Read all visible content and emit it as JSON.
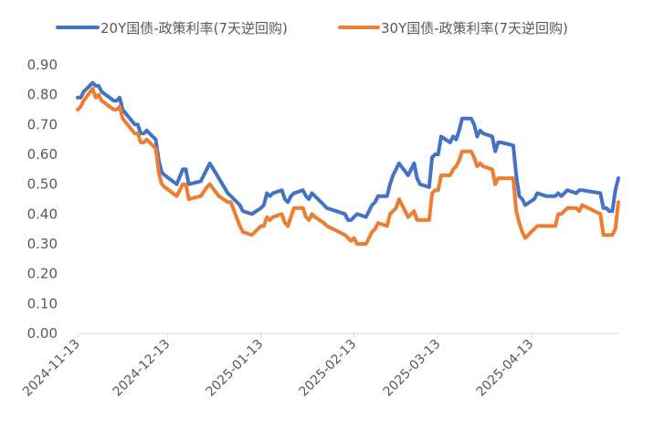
{
  "chart_data": {
    "type": "line",
    "title": "",
    "xlabel": "",
    "ylabel": "",
    "ylim": [
      0,
      0.9
    ],
    "yticks": [
      "0.00",
      "0.10",
      "0.20",
      "0.30",
      "0.40",
      "0.50",
      "0.60",
      "0.70",
      "0.80",
      "0.90"
    ],
    "xdomain": [
      "2024-11-13",
      "2025-05-12"
    ],
    "xticks": [
      "2024-11-13",
      "2024-12-13",
      "2025-01-13",
      "2025-02-13",
      "2025-03-13",
      "2025-04-13"
    ],
    "grid": "none",
    "legend_position": "top",
    "series": [
      {
        "name": "20Y国债-政策利率(7天逆回购)",
        "color": "#4472C4",
        "points": [
          [
            "2024-11-13",
            0.79
          ],
          [
            "2024-11-14",
            0.79
          ],
          [
            "2024-11-15",
            0.81
          ],
          [
            "2024-11-18",
            0.84
          ],
          [
            "2024-11-19",
            0.83
          ],
          [
            "2024-11-20",
            0.83
          ],
          [
            "2024-11-21",
            0.81
          ],
          [
            "2024-11-25",
            0.78
          ],
          [
            "2024-11-26",
            0.78
          ],
          [
            "2024-11-27",
            0.79
          ],
          [
            "2024-11-28",
            0.75
          ],
          [
            "2024-12-02",
            0.7
          ],
          [
            "2024-12-03",
            0.7
          ],
          [
            "2024-12-04",
            0.67
          ],
          [
            "2024-12-05",
            0.67
          ],
          [
            "2024-12-06",
            0.68
          ],
          [
            "2024-12-09",
            0.65
          ],
          [
            "2024-12-10",
            0.58
          ],
          [
            "2024-12-11",
            0.54
          ],
          [
            "2024-12-12",
            0.53
          ],
          [
            "2024-12-16",
            0.5
          ],
          [
            "2024-12-18",
            0.55
          ],
          [
            "2024-12-19",
            0.55
          ],
          [
            "2024-12-20",
            0.5
          ],
          [
            "2024-12-24",
            0.51
          ],
          [
            "2024-12-26",
            0.55
          ],
          [
            "2024-12-27",
            0.57
          ],
          [
            "2024-12-30",
            0.52
          ],
          [
            "2025-01-02",
            0.47
          ],
          [
            "2025-01-03",
            0.46
          ],
          [
            "2025-01-06",
            0.43
          ],
          [
            "2025-01-07",
            0.41
          ],
          [
            "2025-01-10",
            0.4
          ],
          [
            "2025-01-13",
            0.42
          ],
          [
            "2025-01-14",
            0.43
          ],
          [
            "2025-01-15",
            0.47
          ],
          [
            "2025-01-16",
            0.46
          ],
          [
            "2025-01-17",
            0.47
          ],
          [
            "2025-01-20",
            0.48
          ],
          [
            "2025-01-21",
            0.45
          ],
          [
            "2025-01-22",
            0.44
          ],
          [
            "2025-01-23",
            0.46
          ],
          [
            "2025-01-24",
            0.47
          ],
          [
            "2025-01-27",
            0.48
          ],
          [
            "2025-01-28",
            0.46
          ],
          [
            "2025-01-29",
            0.45
          ],
          [
            "2025-01-30",
            0.47
          ],
          [
            "2025-01-31",
            0.46
          ],
          [
            "2025-02-03",
            0.43
          ],
          [
            "2025-02-04",
            0.42
          ],
          [
            "2025-02-10",
            0.4
          ],
          [
            "2025-02-11",
            0.38
          ],
          [
            "2025-02-12",
            0.38
          ],
          [
            "2025-02-13",
            0.39
          ],
          [
            "2025-02-14",
            0.4
          ],
          [
            "2025-02-17",
            0.39
          ],
          [
            "2025-02-18",
            0.41
          ],
          [
            "2025-02-19",
            0.43
          ],
          [
            "2025-02-20",
            0.44
          ],
          [
            "2025-02-21",
            0.46
          ],
          [
            "2025-02-24",
            0.46
          ],
          [
            "2025-02-25",
            0.5
          ],
          [
            "2025-02-26",
            0.53
          ],
          [
            "2025-02-27",
            0.55
          ],
          [
            "2025-02-28",
            0.57
          ],
          [
            "2025-03-03",
            0.53
          ],
          [
            "2025-03-04",
            0.55
          ],
          [
            "2025-03-05",
            0.57
          ],
          [
            "2025-03-06",
            0.52
          ],
          [
            "2025-03-07",
            0.5
          ],
          [
            "2025-03-10",
            0.49
          ],
          [
            "2025-03-11",
            0.59
          ],
          [
            "2025-03-12",
            0.6
          ],
          [
            "2025-03-13",
            0.6
          ],
          [
            "2025-03-14",
            0.66
          ],
          [
            "2025-03-17",
            0.64
          ],
          [
            "2025-03-18",
            0.66
          ],
          [
            "2025-03-19",
            0.65
          ],
          [
            "2025-03-20",
            0.68
          ],
          [
            "2025-03-21",
            0.72
          ],
          [
            "2025-03-24",
            0.72
          ],
          [
            "2025-03-25",
            0.7
          ],
          [
            "2025-03-26",
            0.66
          ],
          [
            "2025-03-27",
            0.68
          ],
          [
            "2025-03-28",
            0.67
          ],
          [
            "2025-03-31",
            0.66
          ],
          [
            "2025-04-01",
            0.61
          ],
          [
            "2025-04-02",
            0.64
          ],
          [
            "2025-04-03",
            0.64
          ],
          [
            "2025-04-07",
            0.63
          ],
          [
            "2025-04-08",
            0.53
          ],
          [
            "2025-04-09",
            0.46
          ],
          [
            "2025-04-10",
            0.45
          ],
          [
            "2025-04-11",
            0.43
          ],
          [
            "2025-04-14",
            0.45
          ],
          [
            "2025-04-15",
            0.47
          ],
          [
            "2025-04-18",
            0.46
          ],
          [
            "2025-04-21",
            0.46
          ],
          [
            "2025-04-22",
            0.47
          ],
          [
            "2025-04-23",
            0.46
          ],
          [
            "2025-04-24",
            0.47
          ],
          [
            "2025-04-25",
            0.48
          ],
          [
            "2025-04-28",
            0.47
          ],
          [
            "2025-04-29",
            0.48
          ],
          [
            "2025-04-30",
            0.48
          ],
          [
            "2025-05-06",
            0.47
          ],
          [
            "2025-05-07",
            0.42
          ],
          [
            "2025-05-08",
            0.42
          ],
          [
            "2025-05-09",
            0.41
          ],
          [
            "2025-05-10",
            0.41
          ],
          [
            "2025-05-11",
            0.48
          ],
          [
            "2025-05-12",
            0.52
          ]
        ]
      },
      {
        "name": "30Y国债-政策利率(7天逆回购)",
        "color": "#ED7D31",
        "points": [
          [
            "2024-11-13",
            0.75
          ],
          [
            "2024-11-14",
            0.76
          ],
          [
            "2024-11-15",
            0.78
          ],
          [
            "2024-11-18",
            0.82
          ],
          [
            "2024-11-19",
            0.79
          ],
          [
            "2024-11-20",
            0.8
          ],
          [
            "2024-11-21",
            0.78
          ],
          [
            "2024-11-25",
            0.75
          ],
          [
            "2024-11-26",
            0.75
          ],
          [
            "2024-11-27",
            0.76
          ],
          [
            "2024-11-28",
            0.72
          ],
          [
            "2024-12-02",
            0.67
          ],
          [
            "2024-12-03",
            0.67
          ],
          [
            "2024-12-04",
            0.64
          ],
          [
            "2024-12-05",
            0.64
          ],
          [
            "2024-12-06",
            0.65
          ],
          [
            "2024-12-09",
            0.62
          ],
          [
            "2024-12-10",
            0.54
          ],
          [
            "2024-12-11",
            0.5
          ],
          [
            "2024-12-12",
            0.49
          ],
          [
            "2024-12-16",
            0.46
          ],
          [
            "2024-12-18",
            0.5
          ],
          [
            "2024-12-19",
            0.5
          ],
          [
            "2024-12-20",
            0.45
          ],
          [
            "2024-12-24",
            0.46
          ],
          [
            "2024-12-26",
            0.49
          ],
          [
            "2024-12-27",
            0.5
          ],
          [
            "2024-12-30",
            0.46
          ],
          [
            "2025-01-02",
            0.44
          ],
          [
            "2025-01-03",
            0.44
          ],
          [
            "2025-01-06",
            0.36
          ],
          [
            "2025-01-07",
            0.34
          ],
          [
            "2025-01-10",
            0.33
          ],
          [
            "2025-01-13",
            0.36
          ],
          [
            "2025-01-14",
            0.36
          ],
          [
            "2025-01-15",
            0.39
          ],
          [
            "2025-01-16",
            0.38
          ],
          [
            "2025-01-17",
            0.39
          ],
          [
            "2025-01-20",
            0.4
          ],
          [
            "2025-01-21",
            0.37
          ],
          [
            "2025-01-22",
            0.36
          ],
          [
            "2025-01-23",
            0.39
          ],
          [
            "2025-01-24",
            0.42
          ],
          [
            "2025-01-27",
            0.42
          ],
          [
            "2025-01-28",
            0.39
          ],
          [
            "2025-01-29",
            0.38
          ],
          [
            "2025-01-30",
            0.4
          ],
          [
            "2025-01-31",
            0.39
          ],
          [
            "2025-02-03",
            0.37
          ],
          [
            "2025-02-04",
            0.36
          ],
          [
            "2025-02-10",
            0.33
          ],
          [
            "2025-02-11",
            0.32
          ],
          [
            "2025-02-12",
            0.31
          ],
          [
            "2025-02-13",
            0.32
          ],
          [
            "2025-02-14",
            0.3
          ],
          [
            "2025-02-17",
            0.3
          ],
          [
            "2025-02-18",
            0.32
          ],
          [
            "2025-02-19",
            0.34
          ],
          [
            "2025-02-20",
            0.35
          ],
          [
            "2025-02-21",
            0.37
          ],
          [
            "2025-02-24",
            0.36
          ],
          [
            "2025-02-25",
            0.4
          ],
          [
            "2025-02-26",
            0.41
          ],
          [
            "2025-02-27",
            0.42
          ],
          [
            "2025-02-28",
            0.45
          ],
          [
            "2025-03-03",
            0.39
          ],
          [
            "2025-03-04",
            0.4
          ],
          [
            "2025-03-05",
            0.41
          ],
          [
            "2025-03-06",
            0.38
          ],
          [
            "2025-03-07",
            0.38
          ],
          [
            "2025-03-10",
            0.38
          ],
          [
            "2025-03-11",
            0.47
          ],
          [
            "2025-03-12",
            0.48
          ],
          [
            "2025-03-13",
            0.48
          ],
          [
            "2025-03-14",
            0.53
          ],
          [
            "2025-03-17",
            0.53
          ],
          [
            "2025-03-18",
            0.55
          ],
          [
            "2025-03-19",
            0.56
          ],
          [
            "2025-03-20",
            0.58
          ],
          [
            "2025-03-21",
            0.61
          ],
          [
            "2025-03-24",
            0.61
          ],
          [
            "2025-03-25",
            0.59
          ],
          [
            "2025-03-26",
            0.56
          ],
          [
            "2025-03-27",
            0.57
          ],
          [
            "2025-03-28",
            0.56
          ],
          [
            "2025-03-31",
            0.55
          ],
          [
            "2025-04-01",
            0.5
          ],
          [
            "2025-04-02",
            0.52
          ],
          [
            "2025-04-03",
            0.52
          ],
          [
            "2025-04-07",
            0.52
          ],
          [
            "2025-04-08",
            0.41
          ],
          [
            "2025-04-09",
            0.37
          ],
          [
            "2025-04-10",
            0.34
          ],
          [
            "2025-04-11",
            0.32
          ],
          [
            "2025-04-14",
            0.35
          ],
          [
            "2025-04-15",
            0.36
          ],
          [
            "2025-04-18",
            0.36
          ],
          [
            "2025-04-21",
            0.36
          ],
          [
            "2025-04-22",
            0.4
          ],
          [
            "2025-04-23",
            0.4
          ],
          [
            "2025-04-24",
            0.41
          ],
          [
            "2025-04-25",
            0.42
          ],
          [
            "2025-04-28",
            0.42
          ],
          [
            "2025-04-29",
            0.41
          ],
          [
            "2025-04-30",
            0.43
          ],
          [
            "2025-05-06",
            0.4
          ],
          [
            "2025-05-07",
            0.33
          ],
          [
            "2025-05-08",
            0.33
          ],
          [
            "2025-05-09",
            0.33
          ],
          [
            "2025-05-10",
            0.33
          ],
          [
            "2025-05-11",
            0.35
          ],
          [
            "2025-05-12",
            0.44
          ]
        ]
      }
    ]
  }
}
